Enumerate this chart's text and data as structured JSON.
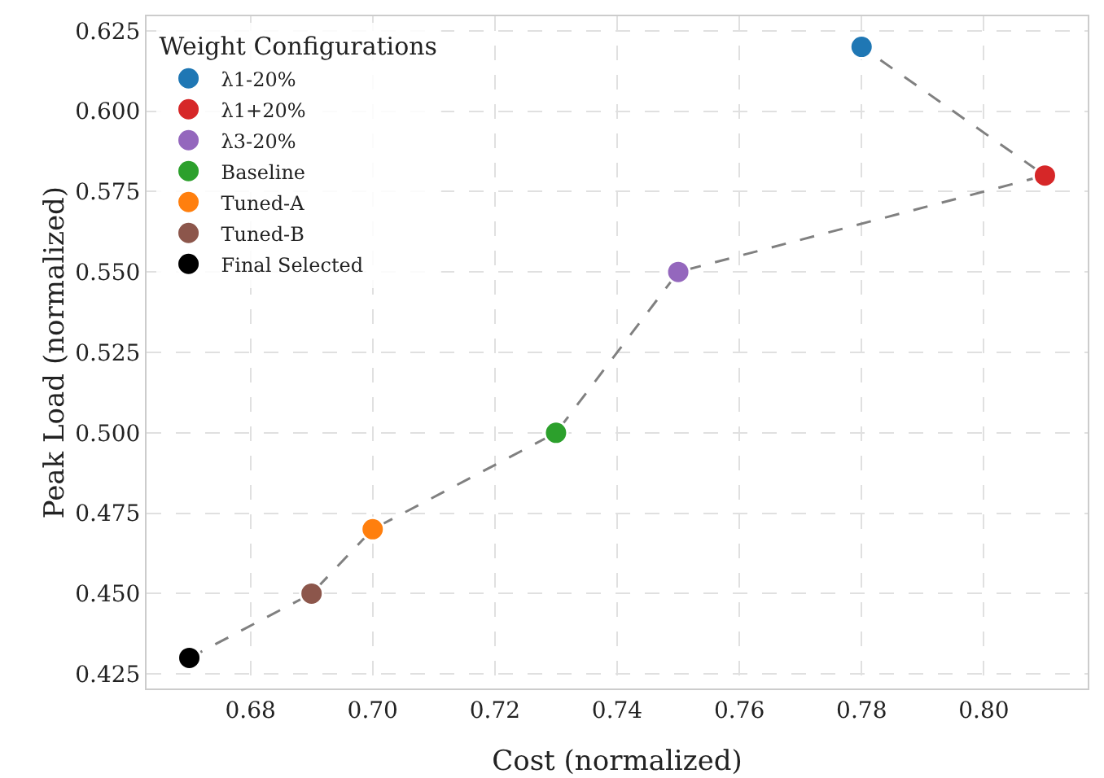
{
  "chart_data": {
    "type": "scatter",
    "xlabel": "Cost (normalized)",
    "ylabel": "Peak Load (normalized)",
    "legend_title": "Weight Configurations",
    "legend": "top left",
    "grid": true,
    "marker": "circle",
    "xlim": [
      0.663,
      0.817
    ],
    "xticks": [
      {
        "value": 0.68,
        "label": "0.68"
      },
      {
        "value": 0.7,
        "label": "0.70"
      },
      {
        "value": 0.72,
        "label": "0.72"
      },
      {
        "value": 0.74,
        "label": "0.74"
      },
      {
        "value": 0.76,
        "label": "0.76"
      },
      {
        "value": 0.78,
        "label": "0.78"
      },
      {
        "value": 0.8,
        "label": "0.80"
      }
    ],
    "ylim": [
      0.4205,
      0.6295
    ],
    "yticks": [
      0.425,
      {
        "value": 0.45,
        "label": "0.450"
      },
      0.475,
      {
        "value": 0.5,
        "label": "0.500"
      },
      0.525,
      {
        "value": 0.55,
        "label": "0.550"
      },
      0.575,
      {
        "value": 0.6,
        "label": "0.600"
      },
      0.625
    ],
    "series": [
      {
        "type": "line",
        "line_style": "dashed",
        "marker": "none",
        "color": "#808080",
        "x": [
          0.67,
          0.69,
          0.7,
          0.73,
          0.75,
          0.81,
          0.78
        ],
        "values": [
          0.43,
          0.45,
          0.47,
          0.5,
          0.55,
          0.58,
          0.62
        ]
      },
      {
        "name": "λ1-20%",
        "color": "#1f77b4",
        "x": [
          0.78
        ],
        "values": [
          0.62
        ]
      },
      {
        "name": "λ1+20%",
        "color": "#d62728",
        "x": [
          0.81
        ],
        "values": [
          0.58
        ]
      },
      {
        "name": "λ3-20%",
        "color": "#9467bd",
        "x": [
          0.75
        ],
        "values": [
          0.55
        ]
      },
      {
        "name": "Baseline",
        "color": "#2ca02c",
        "x": [
          0.73
        ],
        "values": [
          0.5
        ]
      },
      {
        "name": "Tuned-A",
        "color": "#ff7f0e",
        "x": [
          0.7
        ],
        "values": [
          0.47
        ]
      },
      {
        "name": "Tuned-B",
        "color": "#8c564b",
        "x": [
          0.69
        ],
        "values": [
          0.45
        ]
      },
      {
        "name": "Final Selected",
        "color": "#000000",
        "x": [
          0.67
        ],
        "values": [
          0.43
        ]
      }
    ]
  }
}
